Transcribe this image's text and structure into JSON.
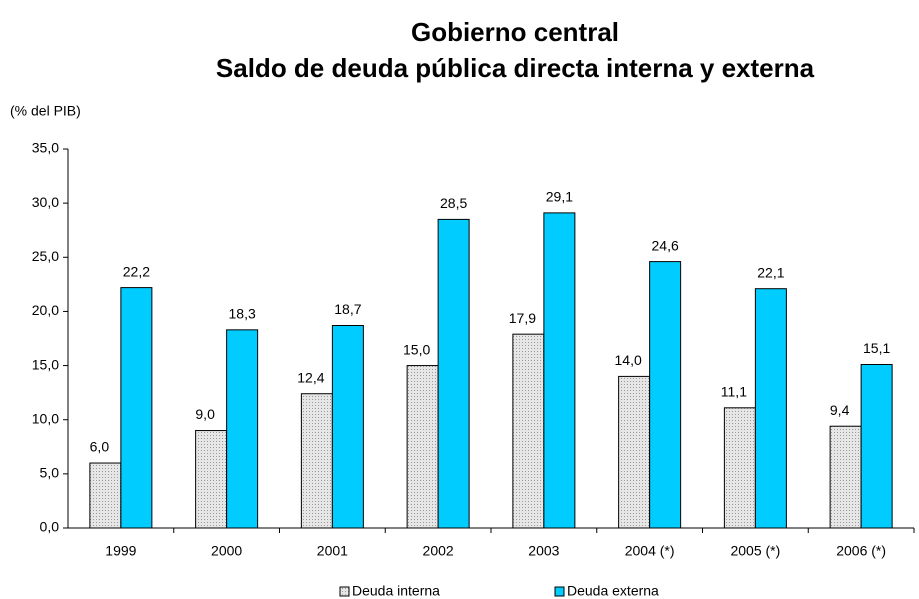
{
  "chart_data": {
    "type": "bar",
    "title": "Gobierno central",
    "subtitle": "Saldo de deuda pública directa interna y externa",
    "y_label": "(% del PIB)",
    "categories": [
      "1999",
      "2000",
      "2001",
      "2002",
      "2003",
      "2004 (*)",
      "2005 (*)",
      "2006 (*)"
    ],
    "series": [
      {
        "name": "Deuda interna",
        "color": "#d9d9d9",
        "values": [
          6.0,
          9.0,
          12.4,
          15.0,
          17.9,
          14.0,
          11.1,
          9.4
        ],
        "value_labels": [
          "6,0",
          "9,0",
          "12,4",
          "15,0",
          "17,9",
          "14,0",
          "11,1",
          "9,4"
        ]
      },
      {
        "name": "Deuda externa",
        "color": "#00ccff",
        "values": [
          22.2,
          18.3,
          18.7,
          28.5,
          29.1,
          24.6,
          22.1,
          15.1
        ],
        "value_labels": [
          "22,2",
          "18,3",
          "18,7",
          "28,5",
          "29,1",
          "24,6",
          "22,1",
          "15,1"
        ]
      }
    ],
    "ylim": [
      0,
      35
    ],
    "yticks": [
      {
        "value": 0,
        "label": "0,0"
      },
      {
        "value": 5,
        "label": "5,0"
      },
      {
        "value": 10,
        "label": "10,0"
      },
      {
        "value": 15,
        "label": "15,0"
      },
      {
        "value": 20,
        "label": "20,0"
      },
      {
        "value": 25,
        "label": "25,0"
      },
      {
        "value": 30,
        "label": "30,0"
      },
      {
        "value": 35,
        "label": "35,0"
      }
    ],
    "grid": false,
    "legend": "bottom"
  }
}
